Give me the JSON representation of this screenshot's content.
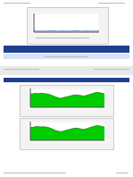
{
  "chart_data": [
    {
      "type": "line",
      "x": [
        0,
        1,
        2,
        3,
        4,
        5,
        6,
        7,
        8,
        9,
        10,
        11,
        12,
        13,
        14,
        15,
        16,
        17,
        18,
        19
      ],
      "xlim": [
        0,
        19
      ],
      "ylim": [
        0,
        100
      ],
      "yticks": [
        0,
        25,
        50,
        75,
        100
      ],
      "grid": true,
      "tick_labels": false,
      "color": "#3355aa",
      "values": [
        6,
        5,
        6,
        5,
        6,
        7,
        6,
        5,
        6,
        6,
        5,
        6,
        7,
        6,
        5,
        6,
        6,
        5,
        6,
        6
      ]
    },
    {
      "type": "area",
      "x": [
        0,
        1,
        2,
        3,
        4,
        5,
        6,
        7,
        8,
        9,
        10,
        11,
        12,
        13,
        14,
        15,
        16,
        17,
        18,
        19,
        20,
        21,
        22,
        23,
        24,
        25,
        26,
        27,
        28,
        29
      ],
      "xlim": [
        0,
        29
      ],
      "ylim": [
        0,
        100
      ],
      "yticks": [
        0,
        25,
        50,
        75,
        100
      ],
      "grid": true,
      "tick_labels": false,
      "color": "#00cc00",
      "values": [
        70,
        72,
        74,
        73,
        75,
        74,
        72,
        70,
        66,
        60,
        55,
        50,
        48,
        52,
        55,
        58,
        62,
        65,
        66,
        64,
        62,
        60,
        63,
        68,
        72,
        76,
        80,
        78,
        75,
        72
      ]
    },
    {
      "type": "area",
      "x": [
        0,
        1,
        2,
        3,
        4,
        5,
        6,
        7,
        8,
        9,
        10,
        11,
        12,
        13,
        14,
        15,
        16,
        17,
        18,
        19,
        20,
        21,
        22,
        23,
        24,
        25,
        26,
        27,
        28,
        29
      ],
      "xlim": [
        0,
        29
      ],
      "ylim": [
        0,
        100
      ],
      "yticks": [
        0,
        25,
        50,
        75,
        100
      ],
      "grid": true,
      "tick_labels": false,
      "color": "#00cc00",
      "values": [
        68,
        70,
        73,
        74,
        72,
        73,
        71,
        69,
        64,
        58,
        52,
        49,
        46,
        50,
        54,
        57,
        61,
        64,
        65,
        63,
        60,
        58,
        62,
        67,
        71,
        75,
        79,
        77,
        74,
        70
      ]
    }
  ]
}
